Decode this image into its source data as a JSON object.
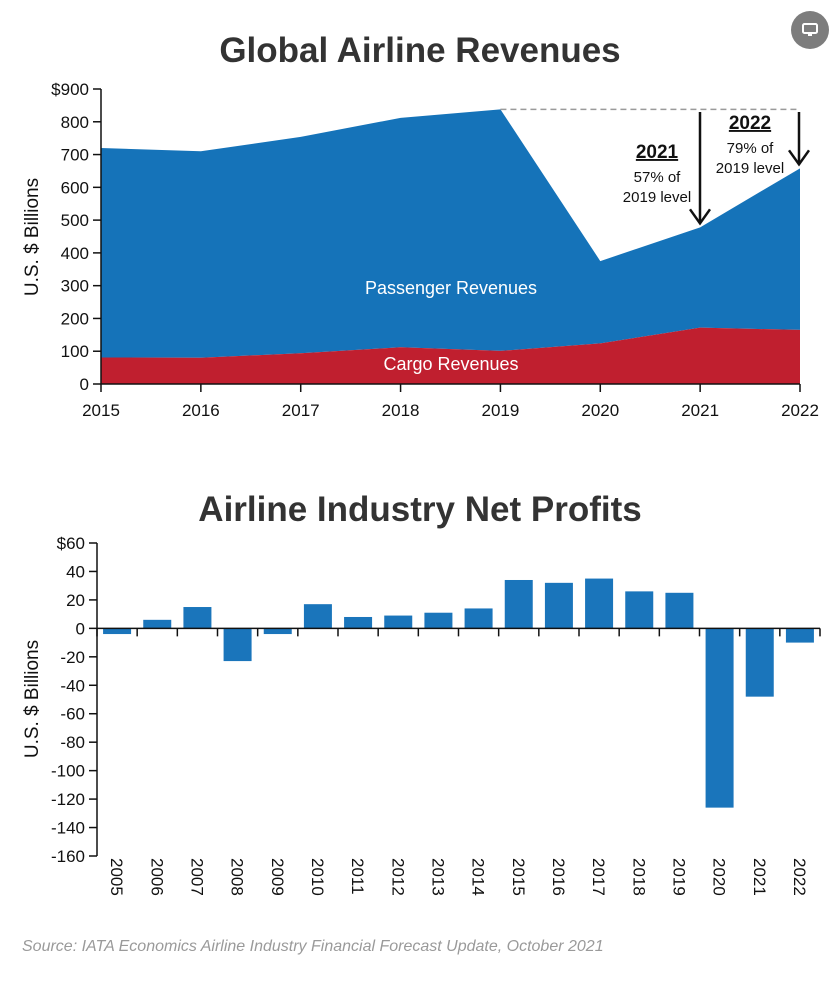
{
  "source_note": "Source: IATA Economics Airline Industry Financial Forecast Update, October 2021",
  "icons": {
    "corner_button": "screen-icon"
  },
  "colors": {
    "passenger": "#1573b9",
    "cargo": "#c01f2f",
    "bars": "#1a75bb"
  },
  "chart_data": [
    {
      "type": "area",
      "title": "Global Airline Revenues",
      "ylabel": "U.S. $ Billions",
      "xlabel": "",
      "x": [
        2015,
        2016,
        2017,
        2018,
        2019,
        2020,
        2021,
        2022
      ],
      "x_tick_labels": [
        "2015",
        "2016",
        "2017",
        "2018",
        "2019",
        "2020",
        "2021",
        "2022"
      ],
      "ylim": [
        0,
        900
      ],
      "y_ticks": [
        0,
        100,
        200,
        300,
        400,
        500,
        600,
        700,
        800,
        900
      ],
      "y_tick_labels": [
        "0",
        "100",
        "200",
        "300",
        "400",
        "500",
        "600",
        "700",
        "800",
        "$900"
      ],
      "stacked": true,
      "series": [
        {
          "name": "Cargo Revenues",
          "values": [
            81,
            80,
            94,
            112,
            101,
            124,
            172,
            165
          ]
        },
        {
          "name": "Passenger Revenues",
          "values": [
            639,
            630,
            660,
            700,
            737,
            251,
            306,
            493
          ]
        }
      ],
      "reference_line": {
        "value": 838
      },
      "annotations": [
        {
          "year": "2021",
          "line1": "57% of",
          "line2": "2019 level"
        },
        {
          "year": "2022",
          "line1": "79% of",
          "line2": "2019 level"
        }
      ],
      "grid": false
    },
    {
      "type": "bar",
      "title": "Airline Industry Net Profits",
      "ylabel": "U.S. $ Billions",
      "xlabel": "",
      "categories": [
        "2005",
        "2006",
        "2007",
        "2008",
        "2009",
        "2010",
        "2011",
        "2012",
        "2013",
        "2014",
        "2015",
        "2016",
        "2017",
        "2018",
        "2019",
        "2020",
        "2021",
        "2022"
      ],
      "values": [
        -4,
        6,
        15,
        -23,
        -4,
        17,
        8,
        9,
        11,
        14,
        34,
        32,
        35,
        26,
        25,
        -126,
        -48,
        -10
      ],
      "ylim": [
        -160,
        60
      ],
      "y_ticks": [
        60,
        40,
        20,
        0,
        -20,
        -40,
        -60,
        -80,
        -100,
        -120,
        -140,
        -160
      ],
      "y_tick_labels": [
        "$60",
        "40",
        "20",
        "0",
        "-20",
        "-40",
        "-60",
        "-80",
        "-100",
        "-120",
        "-140",
        "-160"
      ],
      "grid": false
    }
  ]
}
